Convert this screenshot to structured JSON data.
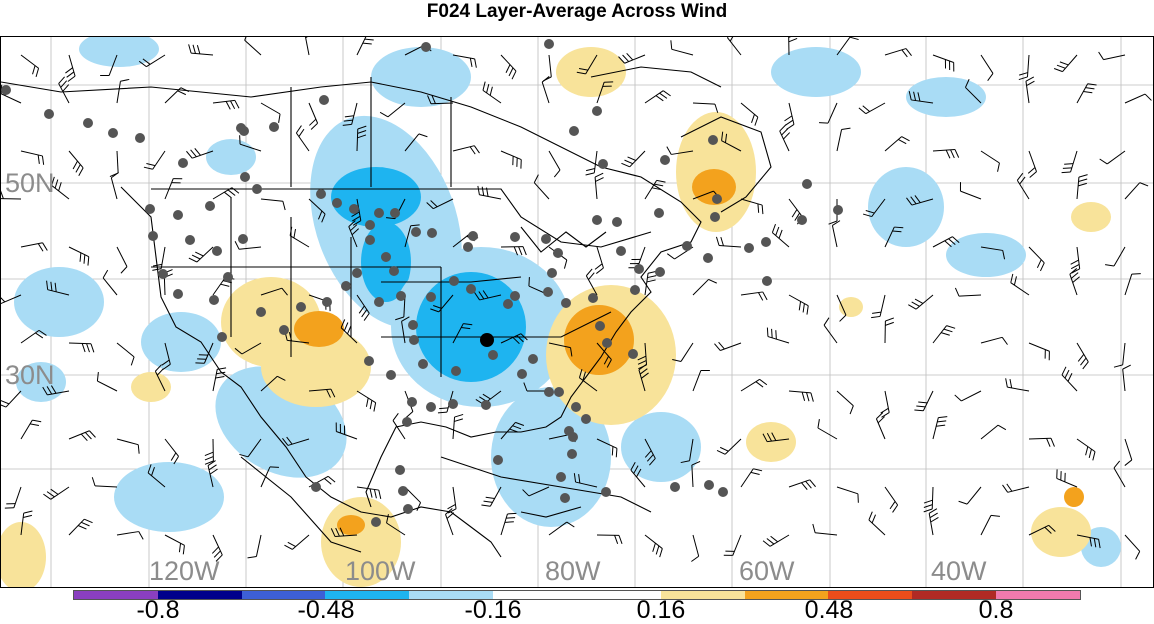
{
  "title": "F024 Layer-Average Across Wind",
  "map": {
    "lat_labels": [
      "50N",
      "30N"
    ],
    "lon_labels": [
      "120W",
      "100W",
      "80W",
      "60W",
      "40W"
    ],
    "background": "#ffffff",
    "gridline_color": "#bdbdbd",
    "coastline_color": "#000000",
    "station_marker_color": "#555555",
    "highlight_station_color": "#000000"
  },
  "colorbar": {
    "colors": [
      "#8a3fc0",
      "#00008b",
      "#3d5fd6",
      "#1eb4f0",
      "#a9dcf5",
      "#ffffff",
      "#ffffff",
      "#f8e39a",
      "#f3a21d",
      "#ea4d1a",
      "#b02a24",
      "#f07aae"
    ],
    "labels": [
      "-0.8",
      "-0.48",
      "-0.16",
      "0.16",
      "0.48",
      "0.8"
    ]
  },
  "legend_colors": {
    "light_blue": "#a9dcf5",
    "blue": "#1eb4f0",
    "light_yellow": "#f8e39a",
    "orange": "#f3a21d"
  }
}
